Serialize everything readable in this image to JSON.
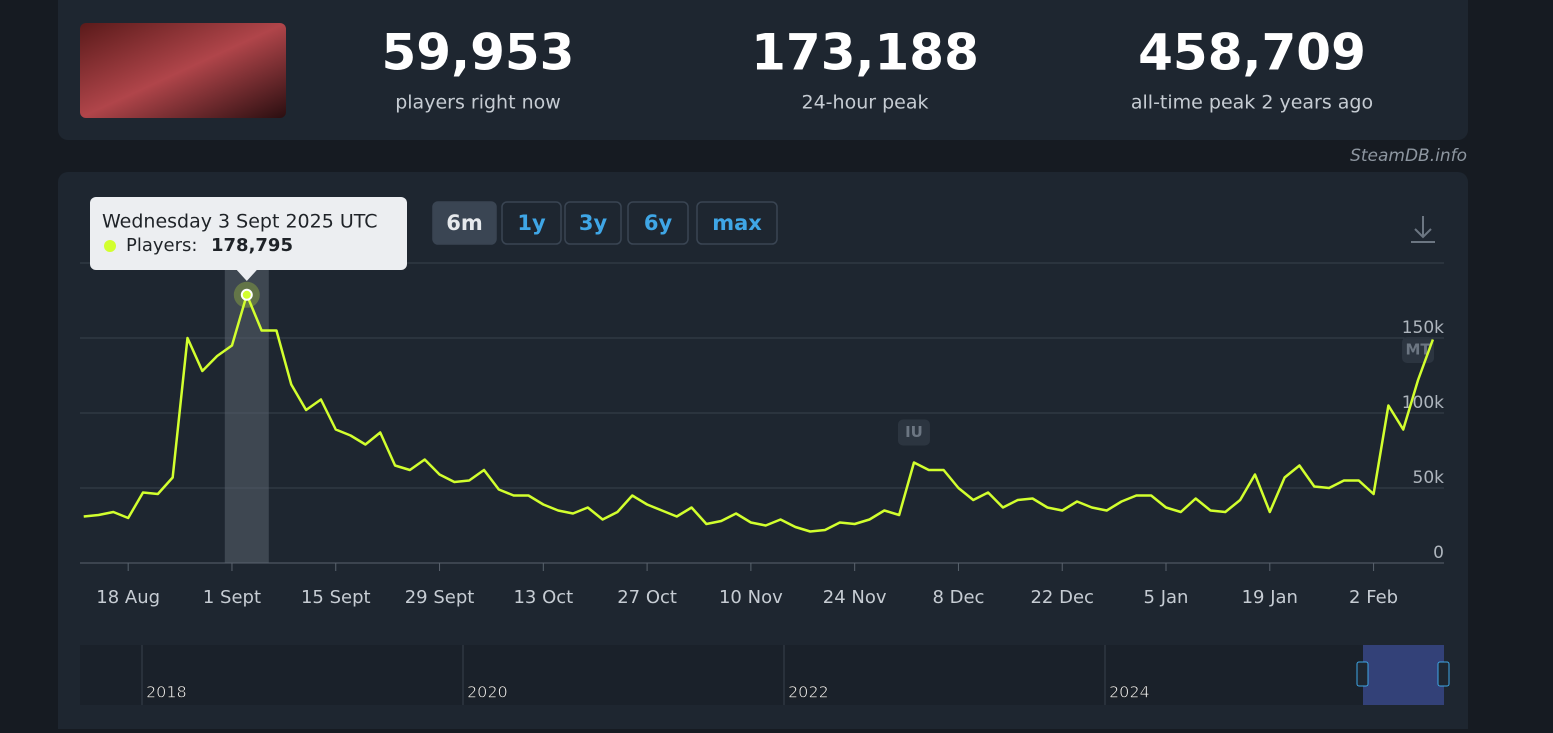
{
  "stats": [
    {
      "value": "59,953",
      "label": "players right now"
    },
    {
      "value": "173,188",
      "label": "24-hour peak"
    },
    {
      "value": "458,709",
      "label": "all-time peak 2 years ago"
    }
  ],
  "credit": "SteamDB.info",
  "range_buttons": [
    "6m",
    "1y",
    "3y",
    "6y",
    "max"
  ],
  "active_range_button": 0,
  "tooltip": {
    "title": "Wednesday 3 Sept 2025 UTC",
    "label": "Players:",
    "value": "178,795",
    "index": 11
  },
  "chart_data": {
    "type": "line",
    "categories": [
      null,
      null,
      null,
      "18 Aug",
      null,
      null,
      null,
      null,
      null,
      null,
      "1 Sept",
      null,
      null,
      null,
      null,
      null,
      null,
      "15 Sept",
      null,
      null,
      null,
      null,
      null,
      null,
      "29 Sept",
      null,
      null,
      null,
      null,
      null,
      null,
      "13 Oct",
      null,
      null,
      null,
      null,
      null,
      null,
      "27 Oct",
      null,
      null,
      null,
      null,
      null,
      null,
      "10 Nov",
      null,
      null,
      null,
      null,
      null,
      null,
      "24 Nov",
      null,
      null,
      null,
      null,
      null,
      null,
      "8 Dec",
      null,
      null,
      null,
      null,
      null,
      null,
      "22 Dec",
      null,
      null,
      null,
      null,
      null,
      null,
      "5 Jan",
      null,
      null,
      null,
      null,
      null,
      null,
      "19 Jan",
      null,
      null,
      null,
      null,
      null,
      null,
      "2 Feb",
      null,
      null,
      null,
      null
    ],
    "series": [
      {
        "name": "Players",
        "color": "#d2ff2e",
        "values": [
          31000,
          32000,
          34000,
          30000,
          47000,
          46000,
          57000,
          150000,
          128000,
          138000,
          145000,
          178795,
          155000,
          155000,
          119000,
          102000,
          109000,
          89000,
          85000,
          79000,
          87000,
          65000,
          62000,
          69000,
          59000,
          54000,
          55000,
          62000,
          49000,
          45000,
          45000,
          39000,
          35000,
          33000,
          37000,
          29000,
          34000,
          45000,
          39000,
          35000,
          31000,
          37000,
          26000,
          28000,
          33000,
          27000,
          25000,
          29000,
          24000,
          21000,
          22000,
          27000,
          26000,
          29000,
          35000,
          32000,
          67000,
          62000,
          62000,
          50000,
          42000,
          47000,
          37000,
          42000,
          43000,
          37000,
          35000,
          41000,
          37000,
          35000,
          41000,
          45000,
          45000,
          37000,
          34000,
          43000,
          35000,
          34000,
          42000,
          59000,
          34000,
          57000,
          65000,
          51000,
          50000,
          55000,
          55000,
          46000,
          105000,
          89000,
          122000,
          149000
        ]
      }
    ],
    "ylim": [
      0,
      200000
    ],
    "yticks": [
      0,
      {
        "value": 50000,
        "label": "50k"
      },
      {
        "value": 100000,
        "label": "100k"
      },
      {
        "value": 150000,
        "label": "150k"
      }
    ],
    "grid": true,
    "annotations": [
      {
        "text": "IU",
        "index": 56
      },
      {
        "text": "MT",
        "index": 90
      }
    ]
  },
  "navigator": {
    "labels": [
      "2018",
      "2020",
      "2022",
      "2024"
    ]
  }
}
